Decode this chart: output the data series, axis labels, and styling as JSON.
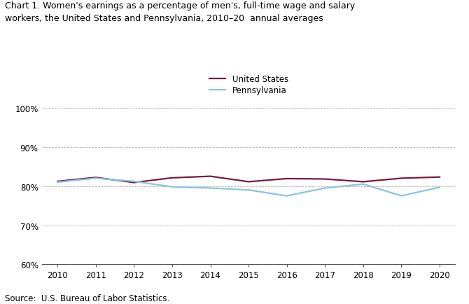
{
  "title_line1": "Chart 1. Women's earnings as a percentage of men's, full-time wage and salary",
  "title_line2": "workers, the United States and Pennsylvania, 2010–20  annual averages",
  "years": [
    2010,
    2011,
    2012,
    2013,
    2014,
    2015,
    2016,
    2017,
    2018,
    2019,
    2020
  ],
  "us_values": [
    81.2,
    82.2,
    80.9,
    82.1,
    82.5,
    81.1,
    81.9,
    81.8,
    81.1,
    82.0,
    82.3
  ],
  "pa_values": [
    81.0,
    82.0,
    81.2,
    79.8,
    79.5,
    79.0,
    77.5,
    79.5,
    80.5,
    77.5,
    79.7
  ],
  "us_color": "#7b1a3e",
  "pa_color": "#89c4e1",
  "ylim": [
    60,
    102
  ],
  "yticks": [
    60,
    70,
    80,
    90,
    100
  ],
  "ytick_labels": [
    "60%",
    "70%",
    "80%",
    "90%",
    "100%"
  ],
  "xlim": [
    2009.6,
    2020.4
  ],
  "xticks": [
    2010,
    2011,
    2012,
    2013,
    2014,
    2015,
    2016,
    2017,
    2018,
    2019,
    2020
  ],
  "source_text": "Source:  U.S. Bureau of Labor Statistics.",
  "legend_us": "United States",
  "legend_pa": "Pennsylvania",
  "grid_color": "#b0b0b0",
  "background_color": "#ffffff"
}
